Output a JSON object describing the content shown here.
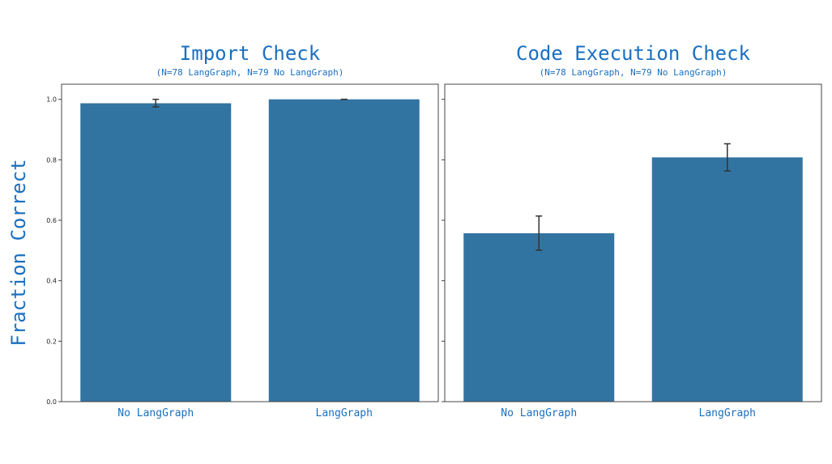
{
  "figure": {
    "ylabel": "Fraction Correct",
    "bar_color": "#3274a1",
    "text_color": "#1a6fbf",
    "sharey": true
  },
  "chart_data": [
    {
      "type": "bar",
      "title": "Import Check",
      "subtitle": "(N=78 LangGraph, N=79 No LangGraph)",
      "xlabel": "",
      "ylabel": "Fraction Correct",
      "categories": [
        "No LangGraph",
        "LangGraph"
      ],
      "values": [
        0.987,
        1.0
      ],
      "error_low": [
        0.975,
        1.0
      ],
      "error_high": [
        1.0,
        1.0
      ],
      "ylim": [
        0,
        1.05
      ],
      "yticks": [
        "0.0",
        "0.2",
        "0.4",
        "0.6",
        "0.8",
        "1.0"
      ],
      "grid": false
    },
    {
      "type": "bar",
      "title": "Code Execution Check",
      "subtitle": "(N=78 LangGraph, N=79 No LangGraph)",
      "xlabel": "",
      "ylabel": "",
      "categories": [
        "No LangGraph",
        "LangGraph"
      ],
      "values": [
        0.557,
        0.808
      ],
      "error_low": [
        0.501,
        0.763
      ],
      "error_high": [
        0.614,
        0.853
      ],
      "ylim": [
        0,
        1.05
      ],
      "yticks": [],
      "grid": false
    }
  ]
}
